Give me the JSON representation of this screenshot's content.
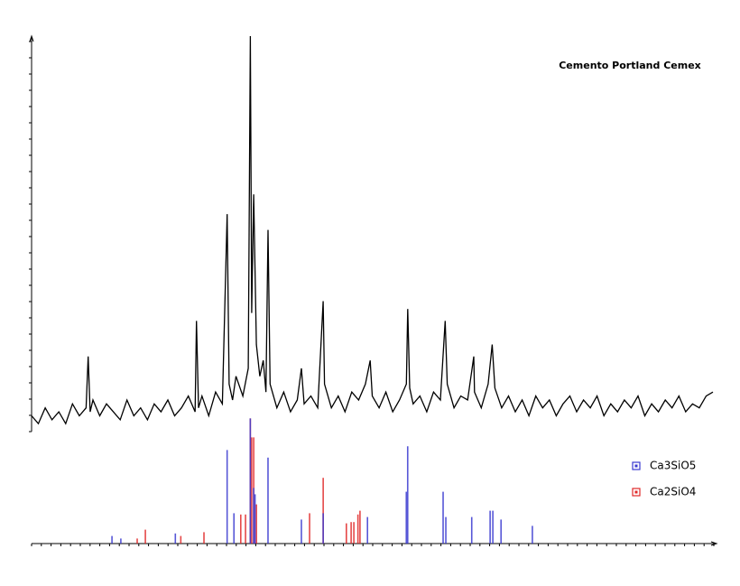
{
  "chart_data": [
    {
      "type": "line",
      "title": "Cemento Portland Cemex",
      "x": [
        0,
        1,
        2,
        3,
        4,
        5,
        6,
        7,
        8,
        8.3,
        8.6,
        9,
        10,
        11,
        12,
        13,
        14,
        15,
        16,
        17,
        18,
        19,
        20,
        21,
        22,
        23,
        24,
        24.2,
        24.5,
        25,
        26,
        27,
        28,
        28.7,
        29,
        29.5,
        30,
        31,
        31.8,
        32.1,
        32.3,
        32.6,
        33,
        33.5,
        34,
        34.4,
        34.7,
        35,
        36,
        37,
        38,
        39,
        39.6,
        40,
        41,
        42,
        42.8,
        43,
        44,
        45,
        46,
        47,
        48,
        49,
        49.7,
        50,
        51,
        52,
        53,
        54,
        55,
        55.2,
        55.5,
        56,
        57,
        58,
        59,
        60,
        60.7,
        61,
        62,
        63,
        64,
        64.9,
        65,
        66,
        67,
        67.6,
        68,
        69,
        70,
        71,
        72,
        73,
        74,
        75,
        76,
        77,
        78,
        79,
        80,
        81,
        82,
        83,
        84,
        85,
        86,
        87,
        88,
        89,
        90,
        91,
        92,
        93,
        94,
        95,
        96,
        97,
        98,
        99,
        100
      ],
      "series": [
        {
          "color": "#000000",
          "values": [
            4,
            2,
            6,
            3,
            5,
            2,
            7,
            4,
            6,
            19,
            5,
            8,
            4,
            7,
            5,
            3,
            8,
            4,
            6,
            3,
            7,
            5,
            8,
            4,
            6,
            9,
            5,
            28,
            6,
            9,
            4,
            10,
            7,
            55,
            12,
            8,
            14,
            9,
            16,
            100,
            30,
            60,
            22,
            14,
            18,
            10,
            51,
            12,
            6,
            10,
            5,
            8,
            16,
            7,
            9,
            6,
            33,
            12,
            6,
            9,
            5,
            10,
            8,
            12,
            18,
            9,
            6,
            10,
            5,
            8,
            12,
            31,
            11,
            7,
            9,
            5,
            10,
            8,
            28,
            12,
            6,
            9,
            8,
            19,
            10,
            6,
            12,
            22,
            11,
            6,
            9,
            5,
            8,
            4,
            9,
            6,
            8,
            4,
            7,
            9,
            5,
            8,
            6,
            9,
            4,
            7,
            5,
            8,
            6,
            9,
            4,
            7,
            5,
            8,
            6,
            9,
            5,
            7,
            6,
            9,
            10
          ]
        }
      ],
      "xlim": [
        0,
        100
      ],
      "ylim": [
        0,
        100
      ]
    },
    {
      "type": "stem",
      "series": [
        {
          "name": "Ca3SiO5",
          "color": "#3a3ad0",
          "x": [
            11.8,
            13.1,
            21.1,
            28.7,
            29.7,
            32.1,
            32.6,
            32.8,
            34.7,
            39.6,
            42.8,
            49.3,
            55.0,
            55.2,
            60.4,
            60.8,
            64.6,
            67.3,
            67.7,
            68.9,
            73.5
          ],
          "values": [
            6,
            4,
            8,
            74,
            24,
            99,
            44,
            39,
            68,
            19,
            24,
            21,
            41,
            77,
            41,
            21,
            21,
            26,
            26,
            19,
            14
          ]
        },
        {
          "name": "Ca2SiO4",
          "color": "#e02828",
          "x": [
            15.5,
            16.7,
            21.9,
            25.3,
            30.7,
            31.4,
            32.1,
            32.3,
            32.6,
            33.0,
            40.8,
            42.8,
            46.2,
            46.9,
            47.3,
            47.9,
            48.2
          ],
          "values": [
            4,
            11,
            6,
            9,
            23,
            23,
            99,
            84,
            84,
            31,
            24,
            52,
            16,
            17,
            17,
            23,
            26
          ]
        }
      ],
      "xlim": [
        0,
        100
      ],
      "ylim": [
        0,
        100
      ]
    }
  ]
}
